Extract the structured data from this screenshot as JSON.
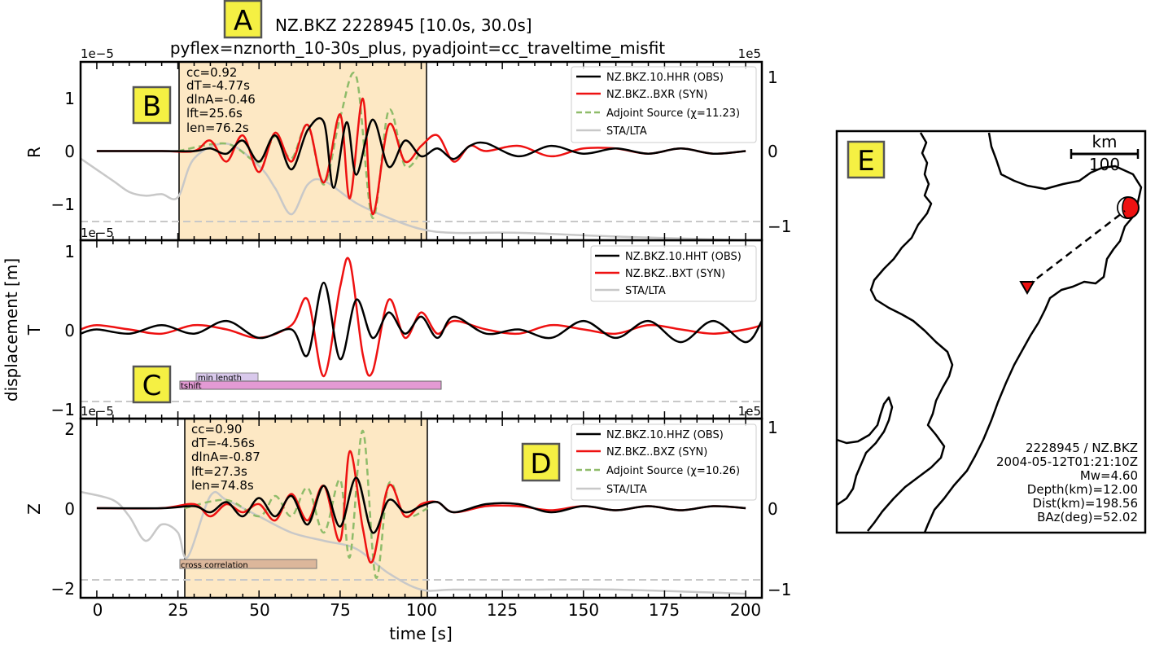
{
  "colors": {
    "obs": "#000000",
    "syn": "#ee1111",
    "adjoint": "#8fbc6a",
    "stalta": "#c8c8c8",
    "window": "#fde8c4",
    "badge": "#f5f043",
    "badge_border": "#555555",
    "shift_bar": "#e39ad4",
    "minlen_bar": "#d9c9ec",
    "cc_bar": "#dcb79b"
  },
  "title": {
    "line1": "NZ.BKZ 2228945 [10.0s, 30.0s]",
    "line2": "pyflex=nznorth_10-30s_plus,  pyadjoint=cc_traveltime_misfit"
  },
  "badges": {
    "a": "A",
    "b": "B",
    "c": "C",
    "d": "D",
    "e": "E"
  },
  "axes": {
    "xlabel": "time [s]",
    "ylabel": "displacement [m]",
    "x_ticks": [
      "0",
      "25",
      "50",
      "75",
      "100",
      "125",
      "150",
      "175",
      "200"
    ],
    "left_multiplier": "1e−5",
    "right_multiplier": "1e5",
    "left_ticks_rt": [
      "1",
      "0",
      "−1"
    ],
    "left_ticks_z": [
      "2",
      "0",
      "−2"
    ],
    "right_ticks": [
      "1",
      "0",
      "−1"
    ]
  },
  "panels": {
    "r": {
      "label": "R",
      "stats": [
        "cc=0.92",
        "dT=-4.77s",
        "dlnA=-0.46",
        "lft=25.6s",
        "len=76.2s"
      ],
      "legend": [
        "NZ.BKZ.10.HHR (OBS)",
        "NZ.BKZ..BXR (SYN)",
        "Adjoint Source (χ=11.23)",
        "STA/LTA"
      ]
    },
    "t": {
      "label": "T",
      "legend": [
        "NZ.BKZ.10.HHT (OBS)",
        "NZ.BKZ..BXT (SYN)",
        "STA/LTA"
      ],
      "bar_labels": {
        "min_length": "min length",
        "tshift": "tshift"
      }
    },
    "z": {
      "label": "Z",
      "stats": [
        "cc=0.90",
        "dT=-4.56s",
        "dlnA=-0.87",
        "lft=27.3s",
        "len=74.8s"
      ],
      "legend": [
        "NZ.BKZ.10.HHZ (OBS)",
        "NZ.BKZ..BXZ (SYN)",
        "Adjoint Source (χ=10.26)",
        "STA/LTA"
      ],
      "bar_labels": {
        "cross_correlation": "cross correlation"
      }
    }
  },
  "map": {
    "scale_unit": "km",
    "scale_value": "100",
    "info": [
      "2228945 / NZ.BKZ",
      "2004-05-12T01:21:10Z",
      "Mw=4.60",
      "Depth(km)=12.00",
      "Dist(km)=198.56",
      "BAz(deg)=52.02"
    ]
  },
  "chart_data": [
    {
      "type": "line",
      "panel": "R",
      "xlim": [
        -5,
        205
      ],
      "ylim_left": [
        -1.7,
        1.7
      ],
      "ylim_right": [
        -1.2,
        1.2
      ],
      "window": [
        25.6,
        101.8
      ],
      "series": [
        {
          "name": "NZ.BKZ.10.HHR (OBS)",
          "x": [
            0,
            20,
            30,
            35,
            40,
            45,
            50,
            55,
            60,
            65,
            70,
            73,
            77,
            80,
            85,
            90,
            95,
            100,
            105,
            110,
            115,
            120,
            130,
            140,
            150,
            160,
            170,
            180,
            190,
            200
          ],
          "values": [
            0,
            0,
            0,
            0.05,
            -0.05,
            0.2,
            -0.2,
            0.3,
            -0.35,
            0.4,
            0.55,
            -0.7,
            0.55,
            -0.45,
            0.6,
            -0.3,
            0.2,
            -0.1,
            0.05,
            -0.15,
            0.1,
            0.15,
            -0.1,
            0.1,
            -0.05,
            0.05,
            -0.05,
            0.05,
            -0.05,
            0
          ]
        },
        {
          "name": "NZ.BKZ..BXR (SYN)",
          "x": [
            0,
            20,
            30,
            35,
            40,
            45,
            50,
            55,
            60,
            65,
            70,
            75,
            78,
            82,
            85,
            90,
            95,
            100,
            105,
            110,
            115,
            120,
            130,
            140,
            150,
            160,
            170,
            180,
            190,
            200
          ],
          "values": [
            0,
            0,
            0,
            0.2,
            -0.2,
            0.3,
            -0.4,
            0.35,
            -0.2,
            0.5,
            -0.6,
            0.7,
            -0.9,
            1.0,
            -1.2,
            0.5,
            -0.2,
            0.1,
            0.3,
            -0.2,
            0.1,
            0.0,
            0.1,
            -0.1,
            0.05,
            0.05,
            -0.05,
            0.05,
            -0.05,
            0
          ]
        },
        {
          "name": "Adjoint Source (χ=11.23)",
          "axis": "right",
          "x": [
            25,
            40,
            50,
            55,
            60,
            65,
            70,
            75,
            80,
            85,
            90,
            95,
            100
          ],
          "values": [
            0,
            0.1,
            -0.15,
            0.2,
            -0.1,
            0.35,
            -0.45,
            0.45,
            1.0,
            -0.9,
            0.55,
            -0.2,
            0
          ]
        },
        {
          "name": "STA/LTA",
          "axis": "right",
          "x": [
            -5,
            5,
            10,
            15,
            20,
            25,
            30,
            40,
            50,
            55,
            60,
            65,
            70,
            80,
            90,
            100,
            110,
            130,
            160,
            200
          ],
          "values": [
            -0.1,
            -0.4,
            -0.55,
            -0.6,
            -0.58,
            -0.62,
            -0.1,
            0.1,
            -0.2,
            -0.5,
            -0.85,
            -0.45,
            -0.4,
            -0.7,
            -0.9,
            -1.05,
            -1.1,
            -1.1,
            -1.15,
            -1.2
          ]
        }
      ]
    },
    {
      "type": "line",
      "panel": "T",
      "xlim": [
        -5,
        205
      ],
      "ylim_left": [
        -1.05,
        1.05
      ],
      "series": [
        {
          "name": "NZ.BKZ.10.HHT (OBS)",
          "x": [
            -5,
            0,
            10,
            20,
            30,
            40,
            50,
            60,
            65,
            70,
            75,
            80,
            85,
            90,
            95,
            100,
            105,
            110,
            120,
            130,
            140,
            150,
            160,
            170,
            180,
            190,
            200,
            205
          ],
          "values": [
            -0.05,
            0,
            -0.05,
            0.05,
            -0.05,
            0.1,
            -0.1,
            0.0,
            -0.3,
            0.55,
            -0.35,
            0.35,
            -0.1,
            0.2,
            -0.05,
            0.15,
            -0.1,
            0.15,
            -0.05,
            0.0,
            -0.1,
            0.1,
            -0.1,
            0.1,
            -0.15,
            0.1,
            -0.15,
            0.1
          ]
        },
        {
          "name": "NZ.BKZ..BXT (SYN)",
          "x": [
            -5,
            0,
            10,
            20,
            30,
            40,
            50,
            60,
            65,
            70,
            75,
            78,
            82,
            85,
            90,
            95,
            100,
            105,
            110,
            120,
            130,
            140,
            150,
            160,
            170,
            180,
            190,
            200,
            205
          ],
          "values": [
            0,
            0.05,
            0.0,
            -0.05,
            0.05,
            0.0,
            -0.1,
            0.05,
            0.35,
            -0.55,
            0.5,
            0.8,
            -0.3,
            -0.5,
            0.35,
            -0.1,
            0.2,
            -0.05,
            0.1,
            0.0,
            -0.05,
            0.05,
            0.0,
            -0.05,
            0.05,
            0.0,
            -0.05,
            0.0,
            0.05
          ]
        }
      ]
    },
    {
      "type": "line",
      "panel": "Z",
      "xlim": [
        -5,
        205
      ],
      "ylim_left": [
        -2.2,
        2.2
      ],
      "ylim_right": [
        -1.1,
        1.1
      ],
      "window": [
        27.3,
        102.1
      ],
      "series": [
        {
          "name": "NZ.BKZ.10.HHZ (OBS)",
          "x": [
            0,
            20,
            30,
            35,
            40,
            45,
            50,
            55,
            60,
            65,
            70,
            75,
            80,
            85,
            90,
            95,
            100,
            105,
            110,
            120,
            130,
            140,
            150,
            160,
            170,
            180,
            190,
            200
          ],
          "values": [
            0,
            0,
            0.05,
            -0.1,
            0.15,
            -0.2,
            0.25,
            -0.2,
            0.3,
            -0.4,
            0.55,
            -0.45,
            0.75,
            -0.6,
            0.2,
            -0.1,
            0.05,
            0.15,
            -0.1,
            0.1,
            0.1,
            -0.1,
            0.05,
            -0.05,
            0.05,
            -0.05,
            0.05,
            0
          ]
        },
        {
          "name": "NZ.BKZ..BXZ (SYN)",
          "x": [
            0,
            20,
            30,
            35,
            40,
            45,
            50,
            55,
            60,
            65,
            70,
            75,
            78,
            82,
            85,
            90,
            95,
            100,
            105,
            110,
            120,
            130,
            140,
            150,
            160,
            170,
            180,
            190,
            200
          ],
          "values": [
            0,
            0,
            0.1,
            -0.2,
            0.1,
            -0.1,
            0.1,
            -0.3,
            0.35,
            -0.3,
            0.55,
            -0.8,
            1.4,
            -0.5,
            -1.3,
            0.55,
            -0.2,
            0.1,
            0.15,
            -0.1,
            0.05,
            0.05,
            -0.05,
            0.05,
            -0.05,
            0.05,
            -0.05,
            0.05,
            0
          ]
        },
        {
          "name": "Adjoint Source (χ=10.26)",
          "axis": "right",
          "x": [
            27,
            40,
            50,
            55,
            60,
            65,
            70,
            75,
            78,
            82,
            86,
            90,
            95,
            102
          ],
          "values": [
            0,
            0.1,
            -0.1,
            0.15,
            -0.1,
            0.25,
            -0.3,
            0.35,
            -0.6,
            0.95,
            -0.85,
            0.3,
            -0.1,
            0
          ]
        },
        {
          "name": "STA/LTA",
          "axis": "right",
          "x": [
            -5,
            5,
            10,
            15,
            20,
            25,
            28,
            35,
            40,
            50,
            60,
            70,
            80,
            90,
            100,
            110,
            130,
            160,
            200
          ],
          "values": [
            0.2,
            0.1,
            -0.1,
            -0.4,
            -0.2,
            -0.3,
            -0.6,
            0.15,
            0.1,
            -0.1,
            -0.3,
            -0.4,
            -0.5,
            -0.8,
            -1.0,
            -1.0,
            -1.0,
            -1.0,
            -1.05
          ]
        }
      ]
    }
  ]
}
